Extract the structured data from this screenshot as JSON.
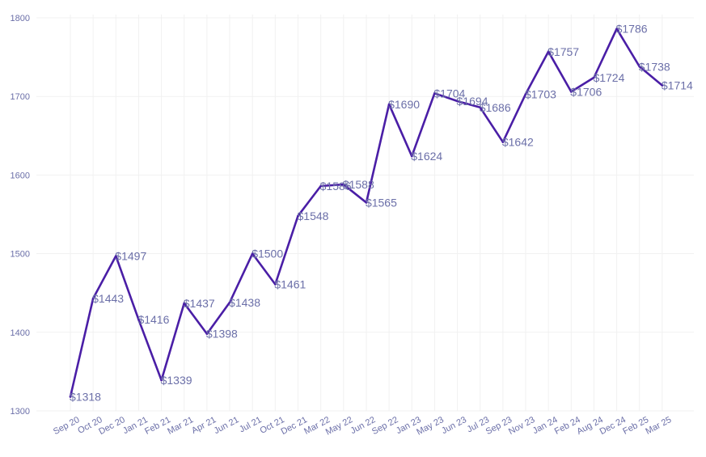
{
  "chart_data": {
    "type": "line",
    "title": "",
    "xlabel": "",
    "ylabel": "",
    "ylim": [
      1300,
      1800
    ],
    "yticks": [
      "1300",
      "1400",
      "1500",
      "1600",
      "1700",
      "1800"
    ],
    "grid": true,
    "colors": {
      "line": "#4a1ea6",
      "text": "#6b6fa8",
      "grid": "#f1f1f1"
    },
    "categories": [
      "Sep 20",
      "Oct 20",
      "Dec 20",
      "Jan 21",
      "Feb 21",
      "Mar 21",
      "Apr 21",
      "Jun 21",
      "Jul 21",
      "Oct 21",
      "Dec 21",
      "Mar 22",
      "May 22",
      "Jun 22",
      "Sep 22",
      "Jan 23",
      "May 23",
      "Jun 23",
      "Jul 23",
      "Sep 23",
      "Nov 23",
      "Jan 24",
      "Feb 24",
      "Aug 24",
      "Dec 24",
      "Feb 25",
      "Mar 25"
    ],
    "values": [
      1318,
      1443,
      1497,
      1416,
      1339,
      1437,
      1398,
      1438,
      1500,
      1461,
      1548,
      1586,
      1588,
      1565,
      1690,
      1624,
      1704,
      1694,
      1686,
      1642,
      1703,
      1757,
      1706,
      1724,
      1786,
      1738,
      1714
    ],
    "labels": [
      "$1318",
      "$1443",
      "$1497",
      "$1416",
      "$1339",
      "$1437",
      "$1398",
      "$1438",
      "$1500",
      "$1461",
      "$1548",
      "$1586",
      "$1588",
      "$1565",
      "$1690",
      "$1624",
      "$1704",
      "$1694",
      "$1686",
      "$1642",
      "$1703",
      "$1757",
      "$1706",
      "$1724",
      "$1786",
      "$1738",
      "$1714"
    ]
  }
}
